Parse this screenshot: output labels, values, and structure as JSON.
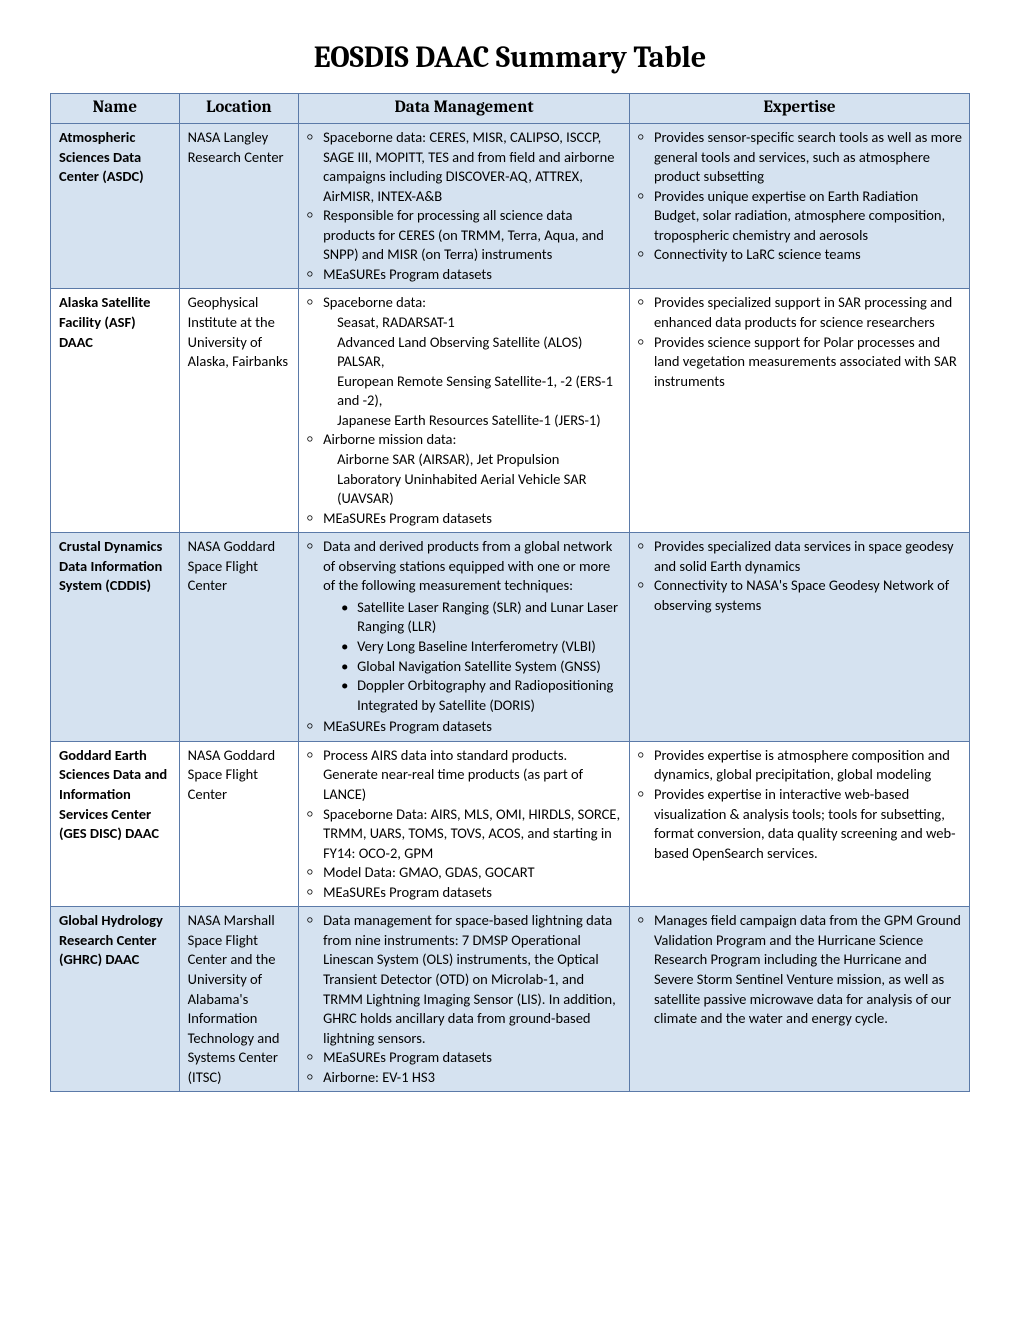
{
  "title": "EOSDIS DAAC Summary Table",
  "columns": [
    "Name",
    "Location",
    "Data Management",
    "Expertise"
  ],
  "rows": [
    {
      "shaded": true,
      "name": "Atmospheric Sciences Data Center (ASDC)",
      "location": "NASA Langley Research Center",
      "data_mgmt": [
        {
          "text": "Spaceborne data: CERES, MISR, CALIPSO, ISCCP, SAGE III, MOPITT, TES and from field and airborne campaigns including DISCOVER-AQ, ATTREX,  AirMISR, INTEX-A&B"
        },
        {
          "text": "Responsible for processing all science data products for CERES (on TRMM, Terra, Aqua, and SNPP) and MISR (on Terra) instruments"
        },
        {
          "text": "MEaSUREs Program datasets"
        }
      ],
      "expertise": [
        {
          "text": "Provides sensor-specific search tools as well as more general tools and services, such as atmosphere product subsetting"
        },
        {
          "text": "Provides unique expertise on Earth Radiation Budget, solar radiation, atmosphere composition, tropospheric chemistry and aerosols"
        },
        {
          "text": "Connectivity to LaRC science teams"
        }
      ]
    },
    {
      "shaded": false,
      "name": "Alaska Satellite Facility (ASF) DAAC",
      "location": "Geophysical Institute at the University of Alaska, Fairbanks",
      "data_mgmt": [
        {
          "text": "Spaceborne data:",
          "sub_indent": [
            "Seasat, RADARSAT-1",
            "Advanced Land Observing Satellite (ALOS) PALSAR,",
            "European Remote Sensing Satellite-1, -2 (ERS-1 and -2),",
            "Japanese Earth Resources Satellite-1 (JERS-1)"
          ]
        },
        {
          "text": "Airborne mission data:",
          "sub_indent": [
            "Airborne SAR (AIRSAR), Jet Propulsion Laboratory Uninhabited Aerial Vehicle SAR (UAVSAR)"
          ]
        },
        {
          "text": "MEaSUREs Program datasets"
        }
      ],
      "expertise": [
        {
          "text": "Provides specialized support in SAR processing and enhanced data products for science researchers"
        },
        {
          "text": "Provides science support for Polar processes and land vegetation measurements associated with SAR instruments"
        }
      ]
    },
    {
      "shaded": true,
      "name": "Crustal Dynamics Data Information System (CDDIS)",
      "location": "NASA Goddard Space Flight Center",
      "data_mgmt": [
        {
          "text": "Data and derived products from a global network of observing stations equipped with one or more of the following measurement techniques:",
          "sub_bullets": [
            "Satellite Laser Ranging (SLR) and Lunar Laser Ranging (LLR)",
            "Very Long Baseline Interferometry (VLBI)",
            "Global Navigation Satellite System (GNSS)",
            "Doppler Orbitography and Radiopositioning Integrated by Satellite (DORIS)"
          ]
        },
        {
          "text": "MEaSUREs Program datasets"
        }
      ],
      "expertise": [
        {
          "text": "Provides specialized data services in space geodesy and solid Earth dynamics"
        },
        {
          "text": "Connectivity to NASA's Space Geodesy Network of observing systems"
        }
      ]
    },
    {
      "shaded": false,
      "name": "Goddard Earth Sciences Data and Information Services Center (GES DISC) DAAC",
      "location": "NASA Goddard Space Flight Center",
      "data_mgmt": [
        {
          "text": "Process AIRS data into standard products. Generate near-real time products (as part of LANCE)"
        },
        {
          "text": "Spaceborne Data: AIRS, MLS, OMI, HIRDLS, SORCE, TRMM, UARS, TOMS, TOVS, ACOS, and starting in FY14: OCO-2, GPM"
        },
        {
          "text": "Model Data: GMAO, GDAS, GOCART"
        },
        {
          "text": "MEaSUREs Program datasets"
        }
      ],
      "expertise": [
        {
          "text": "Provides expertise is atmosphere composition and dynamics, global precipitation, global modeling"
        },
        {
          "text": "Provides expertise in interactive web-based visualization & analysis tools; tools for subsetting, format conversion, data quality screening and web-based OpenSearch services."
        }
      ]
    },
    {
      "shaded": true,
      "name": "Global Hydrology Research Center (GHRC) DAAC",
      "location": "NASA Marshall Space Flight Center and the University of Alabama's Information Technology and Systems Center (ITSC)",
      "data_mgmt": [
        {
          "text": "Data management for space-based lightning data from nine instruments: 7 DMSP Operational Linescan System (OLS) instruments, the Optical Transient Detector (OTD) on Microlab-1, and TRMM Lightning Imaging Sensor (LIS). In addition, GHRC holds ancillary data from ground-based lightning sensors."
        },
        {
          "text": "MEaSUREs Program datasets"
        },
        {
          "text": "Airborne: EV-1 HS3"
        }
      ],
      "expertise": [
        {
          "text": "Manages field campaign data from the GPM Ground Validation Program and the Hurricane Science Research Program including the Hurricane and Severe Storm Sentinel Venture mission, as well as satellite passive microwave data for analysis of our climate and the water and energy cycle."
        }
      ]
    }
  ]
}
